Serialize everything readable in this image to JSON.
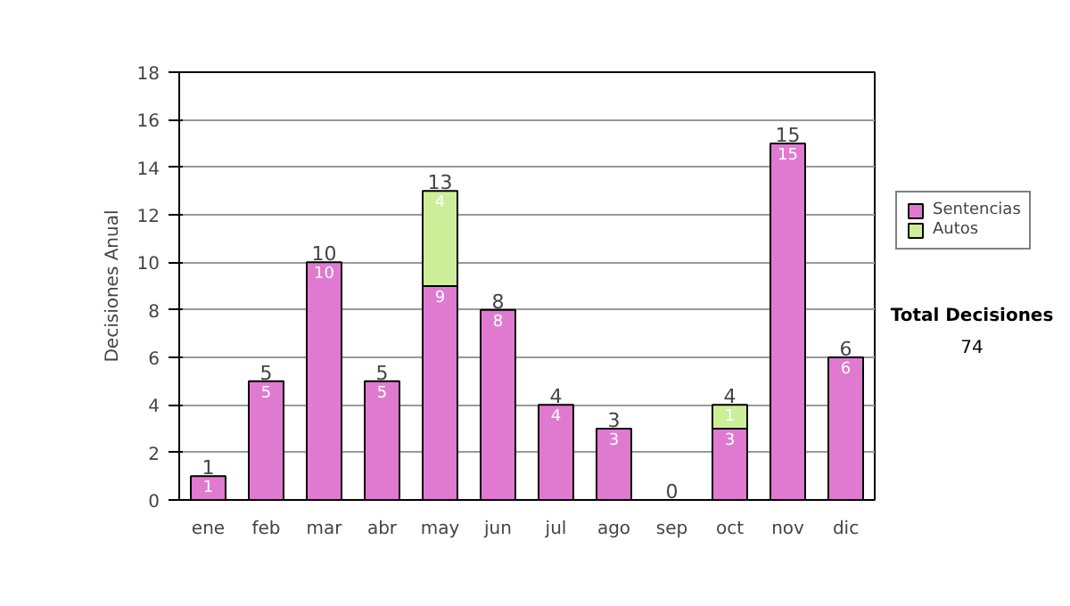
{
  "chart_data": {
    "type": "bar",
    "stacked": true,
    "ylabel": "Decisiones Anual",
    "categories": [
      "ene",
      "feb",
      "mar",
      "abr",
      "may",
      "jun",
      "jul",
      "ago",
      "sep",
      "oct",
      "nov",
      "dic"
    ],
    "series": [
      {
        "name": "Sentencias",
        "color": "#e07ad0",
        "values": [
          1,
          5,
          10,
          5,
          9,
          8,
          4,
          3,
          0,
          3,
          15,
          6
        ],
        "value_labels": [
          "1",
          "5",
          "10",
          "5",
          "9",
          "8",
          "4",
          "3",
          null,
          "3",
          "15",
          "6"
        ]
      },
      {
        "name": "Autos",
        "color": "#ccee99",
        "values": [
          null,
          null,
          null,
          null,
          4,
          null,
          null,
          null,
          null,
          1,
          null,
          null
        ],
        "value_labels": [
          null,
          null,
          null,
          null,
          "4",
          null,
          null,
          null,
          null,
          "1",
          null,
          null
        ]
      }
    ],
    "totals": [
      "1",
      "5",
      "10",
      "5",
      "13",
      "8",
      "4",
      "3",
      "0",
      "4",
      "15",
      "6"
    ],
    "ylim": [
      0,
      18
    ],
    "yticks": [
      0,
      2,
      4,
      6,
      8,
      10,
      12,
      14,
      16,
      18
    ],
    "grid": "y",
    "legend": "right",
    "annotations": [
      "Total Decisiones",
      "74"
    ]
  }
}
